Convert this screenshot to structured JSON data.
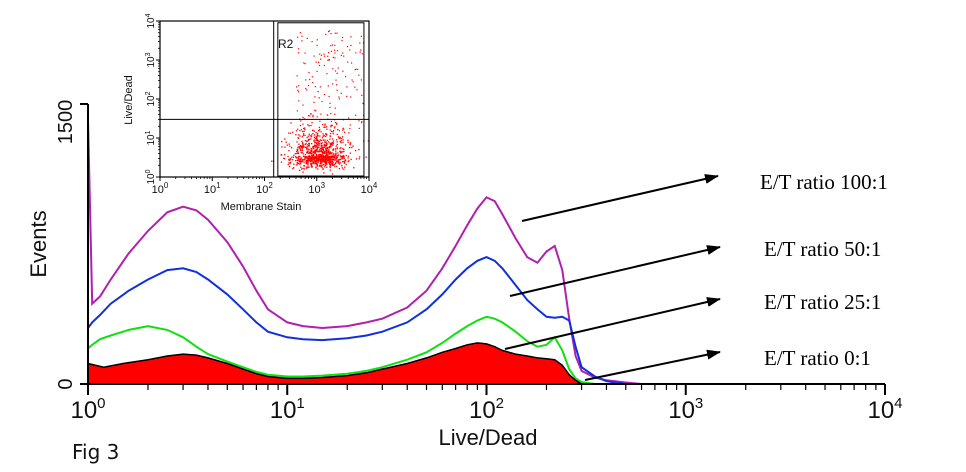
{
  "figure_label": "Fig 3",
  "chart_data": [
    {
      "type": "line",
      "xlabel": "Live/Dead",
      "ylabel": "Events",
      "x_scale": "log",
      "xlim": [
        1,
        10000
      ],
      "ylim": [
        0,
        1500
      ],
      "x_ticks": [
        {
          "value": 1,
          "base": "10",
          "exp": "0"
        },
        {
          "value": 10,
          "base": "10",
          "exp": "1"
        },
        {
          "value": 100,
          "base": "10",
          "exp": "2"
        },
        {
          "value": 1000,
          "base": "10",
          "exp": "3"
        },
        {
          "value": 10000,
          "base": "10",
          "exp": "4"
        }
      ],
      "y_ticks": [
        {
          "value": 0,
          "label": "0"
        },
        {
          "value": 1500,
          "label": "1500"
        }
      ],
      "series": [
        {
          "name": "E/T ratio 100:1",
          "color": "#b020b0",
          "x": [
            1,
            1.05,
            1.15,
            1.3,
            1.6,
            2.0,
            2.5,
            3.0,
            3.5,
            4.0,
            5.0,
            6.0,
            7.0,
            8.0,
            10,
            12,
            15,
            20,
            25,
            30,
            40,
            50,
            60,
            70,
            80,
            90,
            100,
            110,
            120,
            140,
            160,
            180,
            200,
            220,
            240,
            260,
            280,
            300,
            350,
            400,
            500,
            600
          ],
          "values": [
            1420,
            430,
            470,
            560,
            700,
            820,
            920,
            950,
            930,
            880,
            760,
            630,
            500,
            400,
            330,
            310,
            300,
            310,
            330,
            350,
            410,
            500,
            620,
            740,
            850,
            940,
            1000,
            980,
            910,
            780,
            680,
            650,
            710,
            740,
            610,
            350,
            150,
            70,
            35,
            20,
            8,
            0
          ]
        },
        {
          "name": "E/T ratio 50:1",
          "color": "#1030e0",
          "x": [
            1,
            1.05,
            1.15,
            1.3,
            1.6,
            2.0,
            2.5,
            3.0,
            3.5,
            4.0,
            5.0,
            6.0,
            7.0,
            8.0,
            10,
            12,
            15,
            20,
            25,
            30,
            40,
            50,
            60,
            70,
            80,
            90,
            100,
            110,
            120,
            140,
            160,
            180,
            200,
            220,
            240,
            260,
            280,
            300,
            350,
            400,
            500
          ],
          "values": [
            300,
            330,
            370,
            430,
            500,
            560,
            610,
            620,
            600,
            560,
            480,
            400,
            330,
            280,
            250,
            240,
            235,
            245,
            260,
            280,
            330,
            400,
            480,
            560,
            620,
            660,
            680,
            660,
            620,
            530,
            450,
            400,
            360,
            355,
            360,
            340,
            200,
            90,
            40,
            15,
            0
          ]
        },
        {
          "name": "E/T ratio 25:1",
          "color": "#10e010",
          "x": [
            1,
            1.05,
            1.15,
            1.3,
            1.6,
            2.0,
            2.5,
            3.0,
            3.5,
            4.0,
            5.0,
            6.0,
            7.0,
            8.0,
            10,
            12,
            15,
            20,
            25,
            30,
            40,
            50,
            60,
            70,
            80,
            90,
            100,
            110,
            120,
            140,
            160,
            180,
            200,
            220,
            240,
            260,
            280,
            300,
            350
          ],
          "values": [
            190,
            210,
            240,
            260,
            290,
            310,
            290,
            250,
            200,
            160,
            120,
            90,
            65,
            50,
            40,
            40,
            45,
            55,
            70,
            90,
            130,
            170,
            220,
            270,
            310,
            340,
            360,
            350,
            330,
            280,
            230,
            200,
            210,
            250,
            180,
            80,
            30,
            10,
            0
          ]
        },
        {
          "name": "E/T ratio 0:1",
          "color": "#ff0000",
          "x": [
            1,
            1.2,
            1.5,
            2.0,
            2.5,
            3.0,
            3.5,
            4.0,
            5.0,
            6.0,
            7.0,
            8.0,
            10,
            12,
            15,
            20,
            25,
            30,
            40,
            50,
            60,
            70,
            80,
            90,
            100,
            110,
            120,
            140,
            160,
            180,
            200,
            220,
            240,
            260,
            280,
            300
          ],
          "values": [
            110,
            90,
            110,
            130,
            150,
            160,
            155,
            140,
            110,
            80,
            55,
            40,
            30,
            30,
            35,
            45,
            60,
            80,
            110,
            140,
            170,
            190,
            210,
            220,
            215,
            200,
            180,
            160,
            150,
            140,
            135,
            130,
            100,
            50,
            20,
            0
          ]
        }
      ],
      "annotations": [
        {
          "text": "E/T ratio 100:1",
          "series": "E/T ratio 100:1"
        },
        {
          "text": "E/T ratio 50:1",
          "series": "E/T ratio 50:1"
        },
        {
          "text": "E/T ratio 25:1",
          "series": "E/T ratio 25:1"
        },
        {
          "text": "E/T ratio 0:1",
          "series": "E/T ratio 0:1"
        }
      ]
    },
    {
      "type": "scatter",
      "xlabel": "Membrane Stain",
      "ylabel": "Live/Dead",
      "x_scale": "log",
      "y_scale": "log",
      "xlim": [
        1,
        10000
      ],
      "ylim": [
        1,
        10000
      ],
      "x_ticks": [
        {
          "value": 1,
          "base": "10",
          "exp": "0"
        },
        {
          "value": 10,
          "base": "10",
          "exp": "1"
        },
        {
          "value": 100,
          "base": "10",
          "exp": "2"
        },
        {
          "value": 1000,
          "base": "10",
          "exp": "3"
        },
        {
          "value": 10000,
          "base": "10",
          "exp": "4"
        }
      ],
      "y_ticks": [
        {
          "value": 1,
          "base": "10",
          "exp": "0"
        },
        {
          "value": 10,
          "base": "10",
          "exp": "1"
        },
        {
          "value": 100,
          "base": "10",
          "exp": "2"
        },
        {
          "value": 1000,
          "base": "10",
          "exp": "3"
        },
        {
          "value": 10000,
          "base": "10",
          "exp": "4"
        }
      ],
      "quadrant_lines": {
        "x": 150,
        "y": 30
      },
      "region": {
        "label": "R2",
        "x_range": [
          180,
          8000
        ],
        "y_range": [
          1,
          9000
        ]
      },
      "point_color": "#ff0000",
      "population": {
        "x_center_log10": 3.05,
        "x_spread_log10": 0.28,
        "y_center_log10": 0.55,
        "y_spread_log10": 0.35,
        "count": 900,
        "scattered_count": 160
      }
    }
  ]
}
